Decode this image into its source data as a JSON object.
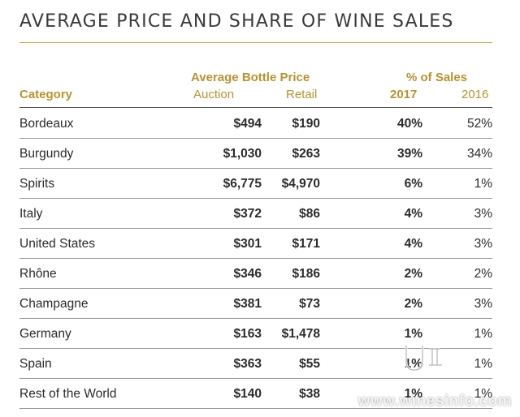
{
  "title": "AVERAGE PRICE AND SHARE OF WINE SALES",
  "headers": {
    "category": "Category",
    "avg_price": "Average Bottle Price",
    "auction": "Auction",
    "retail": "Retail",
    "pct_sales": "% of Sales",
    "y2017": "2017",
    "y2016": "2016"
  },
  "rows": [
    {
      "category": "Bordeaux",
      "auction": "$494",
      "retail": "$190",
      "s2017": "40%",
      "s2016": "52%"
    },
    {
      "category": "Burgundy",
      "auction": "$1,030",
      "retail": "$263",
      "s2017": "39%",
      "s2016": "34%"
    },
    {
      "category": "Spirits",
      "auction": "$6,775",
      "retail": "$4,970",
      "s2017": "6%",
      "s2016": "1%"
    },
    {
      "category": "Italy",
      "auction": "$372",
      "retail": "$86",
      "s2017": "4%",
      "s2016": "3%"
    },
    {
      "category": "United States",
      "auction": "$301",
      "retail": "$171",
      "s2017": "4%",
      "s2016": "3%"
    },
    {
      "category": "Rhône",
      "auction": "$346",
      "retail": "$186",
      "s2017": "2%",
      "s2016": "2%"
    },
    {
      "category": "Champagne",
      "auction": "$381",
      "retail": "$73",
      "s2017": "2%",
      "s2016": "3%"
    },
    {
      "category": "Germany",
      "auction": "$163",
      "retail": "$1,478",
      "s2017": "1%",
      "s2016": "1%"
    },
    {
      "category": "Spain",
      "auction": "$363",
      "retail": "$55",
      "s2017": "1%",
      "s2016": "1%"
    },
    {
      "category": "Rest of the World",
      "auction": "$140",
      "retail": "$38",
      "s2017": "1%",
      "s2016": "1%"
    }
  ],
  "watermark": "www.winesinfo.com",
  "colors": {
    "accent": "#b8922d",
    "rule": "#c8a84a",
    "text": "#2b2b2b"
  }
}
